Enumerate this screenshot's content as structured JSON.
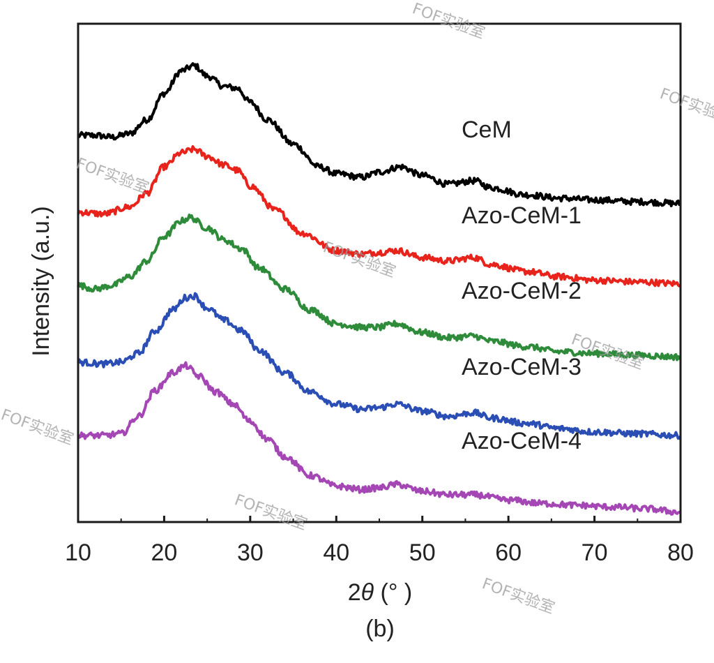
{
  "chart_data": {
    "type": "line",
    "xlabel_prefix": "2",
    "xlabel_symbol": "θ",
    "xlabel_unit": " (° )",
    "ylabel": "Intensity (a.u.)",
    "panel_label": "(b)",
    "xlim": [
      10,
      80
    ],
    "xticks": [
      10,
      20,
      30,
      40,
      50,
      60,
      70,
      80
    ],
    "y_units": "arbitrary",
    "legend_placement": "labels-inline-right",
    "grid": false,
    "series": [
      {
        "name": "CeM",
        "color": "#000000",
        "points": [
          [
            10,
            0.52
          ],
          [
            12,
            0.52
          ],
          [
            14,
            0.51
          ],
          [
            16,
            0.53
          ],
          [
            18,
            0.61
          ],
          [
            20,
            0.76
          ],
          [
            22,
            0.89
          ],
          [
            23.5,
            0.92
          ],
          [
            25,
            0.86
          ],
          [
            27,
            0.8
          ],
          [
            28.5,
            0.79
          ],
          [
            30,
            0.71
          ],
          [
            32,
            0.61
          ],
          [
            35,
            0.47
          ],
          [
            38,
            0.34
          ],
          [
            40,
            0.3
          ],
          [
            43,
            0.28
          ],
          [
            45,
            0.31
          ],
          [
            47.5,
            0.34
          ],
          [
            50,
            0.29
          ],
          [
            53,
            0.24
          ],
          [
            56,
            0.26
          ],
          [
            58,
            0.22
          ],
          [
            62,
            0.18
          ],
          [
            66,
            0.16
          ],
          [
            70,
            0.15
          ],
          [
            75,
            0.14
          ],
          [
            80,
            0.13
          ]
        ]
      },
      {
        "name": "Azo-CeM-1",
        "color": "#e8231c",
        "points": [
          [
            10,
            0.52
          ],
          [
            13,
            0.51
          ],
          [
            16,
            0.55
          ],
          [
            18,
            0.63
          ],
          [
            20,
            0.78
          ],
          [
            22,
            0.86
          ],
          [
            23.5,
            0.88
          ],
          [
            25,
            0.84
          ],
          [
            27,
            0.79
          ],
          [
            28.5,
            0.76
          ],
          [
            30,
            0.67
          ],
          [
            33,
            0.53
          ],
          [
            36,
            0.4
          ],
          [
            40,
            0.3
          ],
          [
            43,
            0.28
          ],
          [
            45,
            0.29
          ],
          [
            47,
            0.3
          ],
          [
            50,
            0.26
          ],
          [
            53,
            0.24
          ],
          [
            56,
            0.26
          ],
          [
            58,
            0.22
          ],
          [
            62,
            0.18
          ],
          [
            66,
            0.15
          ],
          [
            70,
            0.13
          ],
          [
            75,
            0.12
          ],
          [
            80,
            0.11
          ]
        ]
      },
      {
        "name": "Azo-CeM-2",
        "color": "#2e8b3a",
        "points": [
          [
            10,
            0.52
          ],
          [
            12,
            0.5
          ],
          [
            14,
            0.52
          ],
          [
            16,
            0.57
          ],
          [
            18,
            0.66
          ],
          [
            20,
            0.8
          ],
          [
            22,
            0.89
          ],
          [
            23,
            0.91
          ],
          [
            25,
            0.85
          ],
          [
            27,
            0.78
          ],
          [
            29,
            0.73
          ],
          [
            31,
            0.62
          ],
          [
            34,
            0.5
          ],
          [
            37,
            0.38
          ],
          [
            40,
            0.3
          ],
          [
            43,
            0.28
          ],
          [
            45,
            0.28
          ],
          [
            47,
            0.3
          ],
          [
            50,
            0.25
          ],
          [
            53,
            0.22
          ],
          [
            56,
            0.23
          ],
          [
            58,
            0.2
          ],
          [
            62,
            0.17
          ],
          [
            66,
            0.14
          ],
          [
            70,
            0.13
          ],
          [
            75,
            0.12
          ],
          [
            80,
            0.11
          ]
        ]
      },
      {
        "name": "Azo-CeM-3",
        "color": "#2b4eb5",
        "points": [
          [
            10,
            0.52
          ],
          [
            13,
            0.51
          ],
          [
            15,
            0.52
          ],
          [
            17,
            0.57
          ],
          [
            19,
            0.7
          ],
          [
            21,
            0.82
          ],
          [
            22.5,
            0.89
          ],
          [
            23.5,
            0.9
          ],
          [
            25,
            0.83
          ],
          [
            27,
            0.76
          ],
          [
            29,
            0.7
          ],
          [
            31,
            0.59
          ],
          [
            34,
            0.46
          ],
          [
            37,
            0.35
          ],
          [
            40,
            0.28
          ],
          [
            43,
            0.25
          ],
          [
            45,
            0.26
          ],
          [
            47,
            0.28
          ],
          [
            50,
            0.24
          ],
          [
            53,
            0.21
          ],
          [
            56,
            0.23
          ],
          [
            58,
            0.2
          ],
          [
            62,
            0.17
          ],
          [
            66,
            0.14
          ],
          [
            70,
            0.12
          ],
          [
            75,
            0.11
          ],
          [
            80,
            0.1
          ]
        ]
      },
      {
        "name": "Azo-CeM-4",
        "color": "#a447b4",
        "points": [
          [
            10,
            0.52
          ],
          [
            13,
            0.52
          ],
          [
            15,
            0.53
          ],
          [
            17,
            0.63
          ],
          [
            19,
            0.78
          ],
          [
            21,
            0.88
          ],
          [
            22.5,
            0.92
          ],
          [
            24,
            0.86
          ],
          [
            26,
            0.77
          ],
          [
            28,
            0.7
          ],
          [
            30,
            0.6
          ],
          [
            32,
            0.5
          ],
          [
            34,
            0.4
          ],
          [
            37,
            0.29
          ],
          [
            40,
            0.23
          ],
          [
            43,
            0.21
          ],
          [
            45,
            0.22
          ],
          [
            47,
            0.24
          ],
          [
            50,
            0.2
          ],
          [
            53,
            0.18
          ],
          [
            56,
            0.18
          ],
          [
            60,
            0.15
          ],
          [
            64,
            0.13
          ],
          [
            68,
            0.12
          ],
          [
            72,
            0.11
          ],
          [
            76,
            0.1
          ],
          [
            80,
            0.08
          ]
        ]
      }
    ]
  },
  "watermark": "FOF实验室"
}
